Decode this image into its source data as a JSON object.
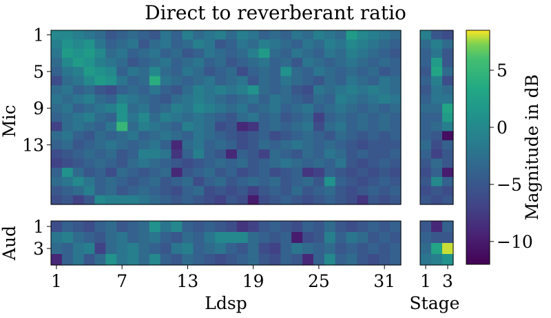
{
  "chart_data": {
    "type": "heatmap",
    "title": "Direct to reverberant ratio",
    "colormap": "viridis",
    "value_range": [
      -12,
      8.5
    ],
    "colorbar": {
      "label": "Magnitude in dB",
      "ticks": [
        5,
        0,
        -5,
        -10
      ],
      "tick_labels": [
        "5",
        "0",
        "−5",
        "−10"
      ]
    },
    "xlabel_main": "Ldsp",
    "xlabel_stage": "Stage",
    "ylabel_mic": "Mic",
    "ylabel_aud": "Aud",
    "x_tick_labels_main": [
      "1",
      "7",
      "13",
      "19",
      "25",
      "31"
    ],
    "x_tick_labels_stage": [
      "1",
      "3"
    ],
    "y_tick_labels_mic": [
      "1",
      "5",
      "9",
      "13"
    ],
    "y_tick_labels_aud": [
      "1",
      "3"
    ],
    "panels": {
      "mic_ldsp": [
        [
          0,
          0,
          -1,
          -2,
          -3,
          -5,
          -4,
          -3,
          -4,
          -5,
          -2,
          -4,
          -1,
          -3,
          -2,
          -1,
          -3,
          -1,
          -2,
          -4,
          -3,
          -4,
          -2,
          -3,
          -1,
          -2,
          -3,
          2,
          0,
          -1,
          -2,
          -3
        ],
        [
          -1,
          1,
          0,
          1,
          -2,
          -4,
          -3,
          -2,
          -5,
          -3,
          -2,
          -4,
          -3,
          -1,
          -2,
          -5,
          -4,
          -2,
          -3,
          -1,
          -2,
          -3,
          -4,
          -2,
          -3,
          -1,
          -2,
          0,
          -1,
          -2,
          -3,
          -4
        ],
        [
          -2,
          2,
          1,
          2,
          0,
          -3,
          -2,
          -4,
          -3,
          -2,
          -4,
          -3,
          -5,
          -4,
          -2,
          -3,
          -4,
          -3,
          -1,
          2,
          -3,
          -4,
          -2,
          -3,
          -4,
          -2,
          -3,
          -1,
          -2,
          -3,
          -4,
          -5
        ],
        [
          -3,
          0,
          2,
          1,
          -1,
          -2,
          -3,
          -5,
          -4,
          -3,
          -2,
          -4,
          -3,
          -2,
          -4,
          -3,
          -5,
          -4,
          -3,
          -2,
          -4,
          -3,
          -5,
          -2,
          -3,
          -4,
          -3,
          -2,
          -3,
          -4,
          -3,
          -4
        ],
        [
          -4,
          -2,
          -1,
          2,
          1,
          0,
          -4,
          -2,
          -3,
          0,
          -3,
          -4,
          -2,
          -3,
          -5,
          -4,
          -3,
          -6,
          -4,
          -3,
          -4,
          1,
          -3,
          -4,
          -2,
          -3,
          -4,
          -3,
          -4,
          -3,
          -5,
          -4
        ],
        [
          -6,
          -3,
          -2,
          0,
          2,
          1,
          -2,
          -4,
          -3,
          4,
          -2,
          -3,
          -4,
          -3,
          -2,
          -4,
          -3,
          -2,
          -5,
          -3,
          -4,
          -2,
          -3,
          -4,
          -5,
          -3,
          -4,
          -2,
          -3,
          -4,
          -2,
          -3
        ],
        [
          -3,
          -2,
          -4,
          -3,
          -5,
          -6,
          -4,
          -3,
          -4,
          -2,
          -4,
          -5,
          -3,
          -1,
          -2,
          -1,
          -2,
          -1,
          1,
          -3,
          -4,
          -3,
          -5,
          -6,
          -2,
          -3,
          -2,
          -1,
          -2,
          -1,
          -2,
          -3
        ],
        [
          -2,
          -3,
          -2,
          -1,
          -3,
          -4,
          -1,
          -2,
          -3,
          -4,
          -5,
          -3,
          -2,
          -1,
          -2,
          -3,
          -4,
          -3,
          -2,
          -4,
          -2,
          -3,
          -4,
          -5,
          -3,
          -4,
          -1,
          -2,
          -3,
          -2,
          -1,
          -2
        ],
        [
          -3,
          -2,
          -4,
          -3,
          -2,
          -1,
          1,
          -3,
          -2,
          -4,
          -3,
          -1,
          -2,
          0,
          -1,
          -2,
          -3,
          -2,
          -4,
          -3,
          -2,
          -4,
          -3,
          -2,
          -4,
          -3,
          -2,
          -3,
          -4,
          -3,
          -4,
          -3
        ],
        [
          -4,
          -3,
          -2,
          -1,
          -3,
          -4,
          1,
          -2,
          0,
          -3,
          -1,
          -2,
          -3,
          -2,
          -3,
          -4,
          -5,
          -3,
          -2,
          -4,
          -3,
          -5,
          -4,
          -3,
          -7,
          -4,
          -3,
          -4,
          -3,
          -4,
          -3,
          -4
        ],
        [
          -7,
          -3,
          -2,
          -3,
          -4,
          -2,
          5,
          -3,
          -1,
          -2,
          -3,
          -4,
          -1,
          -2,
          -3,
          -6,
          -5,
          -9,
          -8,
          -4,
          -3,
          -4,
          -3,
          -2,
          -6,
          -3,
          -2,
          -4,
          -3,
          -4,
          -3,
          -4
        ],
        [
          -3,
          -2,
          -4,
          -5,
          -3,
          -4,
          -3,
          -2,
          -4,
          -3,
          -2,
          -3,
          -4,
          -2,
          -3,
          -4,
          -5,
          -6,
          -5,
          -4,
          -6,
          -5,
          -4,
          -3,
          -4,
          -5,
          -3,
          -4,
          -5,
          -4,
          -5,
          -4
        ],
        [
          -4,
          -3,
          -5,
          -4,
          -3,
          -2,
          -3,
          -4,
          -3,
          -2,
          -4,
          -9,
          -3,
          -2,
          -4,
          -3,
          -4,
          -6,
          -5,
          -3,
          -4,
          -3,
          -2,
          -3,
          -4,
          -3,
          -4,
          -5,
          -6,
          -5,
          -5,
          -5
        ],
        [
          -6,
          -5,
          -4,
          -3,
          -4,
          -3,
          -5,
          -4,
          -1,
          -1,
          -2,
          -8,
          -4,
          -1,
          -4,
          -5,
          -9,
          -4,
          -5,
          -7,
          -3,
          -4,
          -5,
          -3,
          -4,
          -2,
          -3,
          -5,
          -4,
          -5,
          -5,
          -4
        ],
        [
          -7,
          -6,
          -5,
          -4,
          -3,
          -4,
          -5,
          -3,
          -2,
          -3,
          -4,
          -5,
          -6,
          -5,
          -4,
          -3,
          -4,
          -3,
          -5,
          -4,
          -3,
          -2,
          -3,
          -4,
          -3,
          -4,
          -2,
          -5,
          -6,
          -5,
          -4,
          -5
        ],
        [
          -4,
          1,
          -3,
          -5,
          -4,
          -6,
          -3,
          -4,
          -5,
          -4,
          -3,
          -9,
          -5,
          -4,
          -3,
          -5,
          -4,
          -6,
          -5,
          -4,
          -6,
          -5,
          -4,
          -8,
          -7,
          -4,
          -5,
          -6,
          -5,
          -6,
          -5,
          -6
        ],
        [
          -3,
          -2,
          0,
          -2,
          -4,
          -3,
          -4,
          -5,
          -4,
          -3,
          -5,
          -4,
          -3,
          -6,
          -4,
          -3,
          -5,
          -4,
          -3,
          -4,
          -3,
          -5,
          -4,
          -3,
          -5,
          1,
          -4,
          -5,
          -6,
          -5,
          -4,
          -5
        ],
        [
          -5,
          -4,
          -3,
          -1,
          -4,
          -3,
          -5,
          -4,
          -3,
          -4,
          -5,
          -6,
          -4,
          -3,
          -6,
          -5,
          -6,
          -5,
          -7,
          -5,
          -4,
          -5,
          -3,
          -5,
          -4,
          -3,
          -5,
          -6,
          -5,
          -4,
          -5,
          -4
        ],
        [
          -6,
          -5,
          -7,
          -5,
          0,
          -1,
          -1,
          -1,
          -2,
          -3,
          -4,
          -5,
          -4,
          -5,
          -6,
          -7,
          -5,
          -6,
          -10,
          -6,
          -5,
          -4,
          -5,
          -6,
          -5,
          -4,
          -5,
          -6,
          -8,
          -5,
          -6,
          -5
        ]
      ],
      "mic_stage": [
        [
          -1,
          -5,
          -6
        ],
        [
          -3,
          -1,
          -3
        ],
        [
          -4,
          -2,
          -5
        ],
        [
          -4,
          2,
          -5
        ],
        [
          -5,
          3,
          -3
        ],
        [
          -4,
          -1,
          -6
        ],
        [
          -5,
          -2,
          -3
        ],
        [
          -4,
          -2,
          -2
        ],
        [
          -3,
          -3,
          3
        ],
        [
          -4,
          -4,
          2
        ],
        [
          -4,
          -3,
          -1
        ],
        [
          -4,
          -5,
          -11
        ],
        [
          -3,
          -6,
          -4
        ],
        [
          -4,
          -7,
          -5
        ],
        [
          -5,
          -3,
          -5
        ],
        [
          -6,
          -4,
          -10
        ],
        [
          -5,
          0,
          -4
        ],
        [
          -6,
          -5,
          -6
        ],
        [
          -5,
          -6,
          -5
        ]
      ],
      "aud_ldsp": [
        [
          -6,
          -4,
          -5,
          -6,
          -4,
          -3,
          -5,
          -4,
          -3,
          1,
          -2,
          0,
          -4,
          -5,
          -4,
          -5,
          -6,
          -8,
          -7,
          -5,
          -4,
          -5,
          -6,
          -4,
          -5,
          -3,
          -5,
          -6,
          -5,
          -4,
          -5,
          -4
        ],
        [
          -2,
          -1,
          -3,
          -4,
          -5,
          -3,
          -2,
          -4,
          -3,
          -2,
          -4,
          -5,
          -3,
          -4,
          -2,
          0,
          0,
          0,
          -3,
          -4,
          -5,
          -4,
          -10,
          -6,
          -5,
          -1,
          -4,
          -2,
          -3,
          -5,
          -4,
          -5
        ],
        [
          -3,
          -4,
          -2,
          -1,
          -7,
          -3,
          -2,
          -1,
          -3,
          -4,
          -5,
          -2,
          -1,
          -4,
          -3,
          -2,
          -4,
          -5,
          -3,
          -6,
          -7,
          -4,
          -2,
          -3,
          -4,
          -3,
          -5,
          -4,
          -5,
          -4,
          -5,
          -4
        ],
        [
          -9,
          -4,
          -2,
          -5,
          -3,
          1,
          -2,
          -1,
          -3,
          0,
          -4,
          -5,
          -3,
          -4,
          -5,
          -6,
          -5,
          -4,
          -3,
          -5,
          -6,
          -4,
          -5,
          -9,
          -4,
          0,
          -4,
          -3,
          -5,
          -6,
          -5,
          -4
        ]
      ],
      "aud_stage": [
        [
          -5,
          -9,
          -4
        ],
        [
          -4,
          -5,
          -5
        ],
        [
          -3,
          3,
          8
        ],
        [
          -2,
          -1,
          1
        ]
      ]
    }
  }
}
